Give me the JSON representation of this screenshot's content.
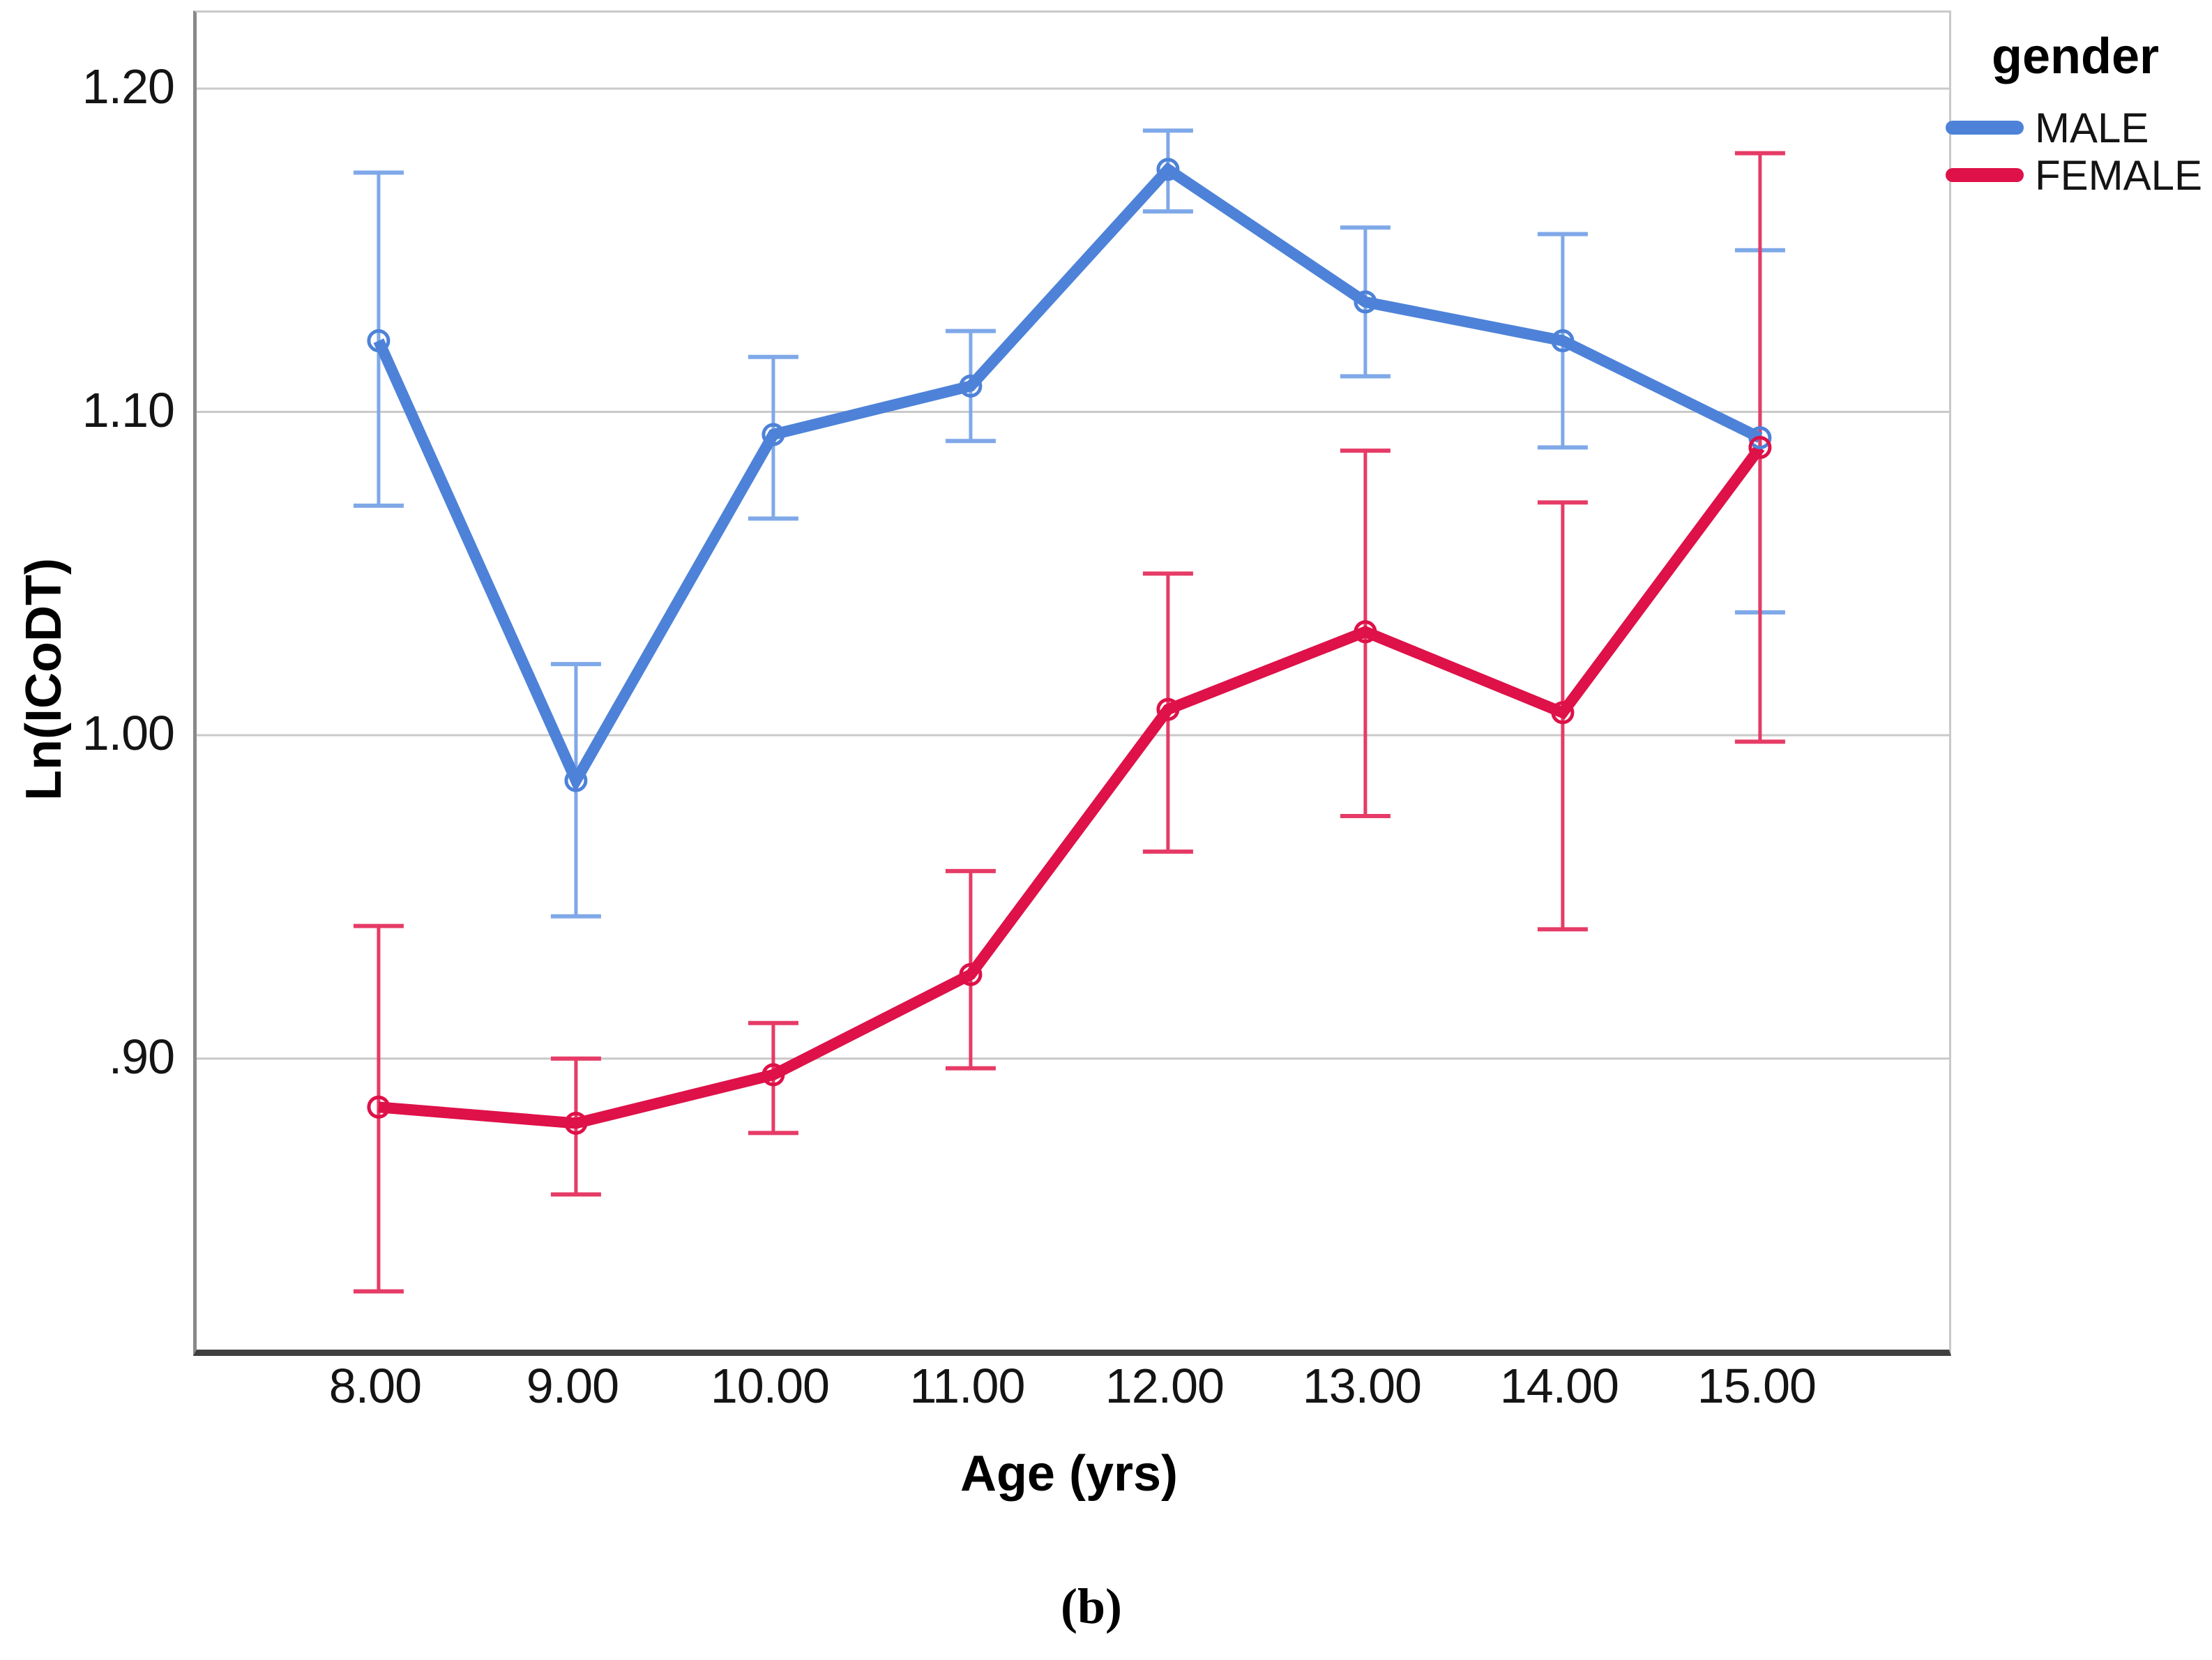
{
  "figure": {
    "caption": "(b)"
  },
  "axes": {
    "x_title": "Age (yrs)",
    "y_title": "Ln(ICoDT)"
  },
  "legend": {
    "title": "gender",
    "items": [
      {
        "label": "MALE",
        "color": "#4D82D8"
      },
      {
        "label": "FEMALE",
        "color": "#DE1148"
      }
    ]
  },
  "chart_data": {
    "type": "line",
    "title": "",
    "xlabel": "Age (yrs)",
    "ylabel": "Ln(ICoDT)",
    "categories": [
      8,
      9,
      10,
      11,
      12,
      13,
      14,
      15
    ],
    "xtick_labels": [
      "8.00",
      "9.00",
      "10.00",
      "11.00",
      "12.00",
      "13.00",
      "14.00",
      "15.00"
    ],
    "ytick_values": [
      1.2,
      1.1,
      1.0,
      0.9
    ],
    "ytick_labels": [
      "1.20",
      "1.10",
      "1.00",
      ".90"
    ],
    "xlim": [
      7.078,
      15.958
    ],
    "ylim": [
      0.81,
      1.2235
    ],
    "grid": "horizontal",
    "legend_position": "top-right",
    "marker": "open-circle",
    "error_bars": "95% CI with caps",
    "series": [
      {
        "name": "MALE",
        "color": "#4D82D8",
        "error_color": "#7FA8E8",
        "means": [
          1.122,
          0.986,
          1.093,
          1.108,
          1.175,
          1.134,
          1.122,
          1.092
        ],
        "ci_low": [
          1.071,
          0.944,
          1.067,
          1.091,
          1.162,
          1.111,
          1.089,
          1.038
        ],
        "ci_high": [
          1.174,
          1.022,
          1.117,
          1.125,
          1.187,
          1.157,
          1.155,
          1.15
        ]
      },
      {
        "name": "FEMALE",
        "color": "#DE1148",
        "error_color": "#E63B66",
        "means": [
          0.885,
          0.88,
          0.895,
          0.926,
          1.008,
          1.032,
          1.007,
          1.089
        ],
        "ci_low": [
          0.828,
          0.858,
          0.877,
          0.897,
          0.964,
          0.975,
          0.94,
          0.998
        ],
        "ci_high": [
          0.941,
          0.9,
          0.911,
          0.958,
          1.05,
          1.088,
          1.072,
          1.18
        ]
      }
    ]
  }
}
